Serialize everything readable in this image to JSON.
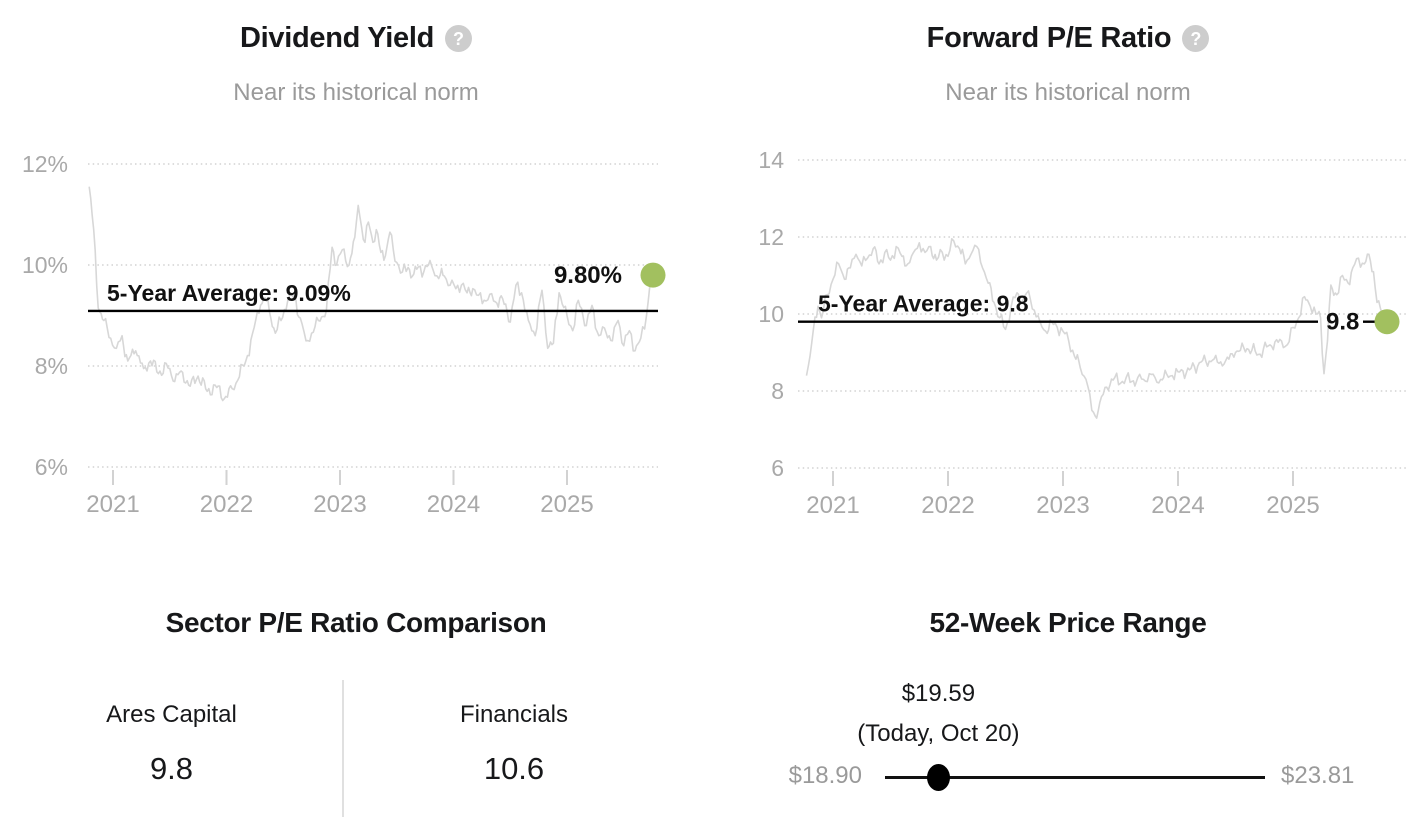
{
  "ui": {
    "help_glyph": "?"
  },
  "colors": {
    "accent_green": "#a2c05f",
    "series_gray": "#d7d7d7",
    "grid_gray": "#d2d2d2",
    "axis_text": "#a9a9a9",
    "average_line": "#000000"
  },
  "chart_data": [
    {
      "id": "dividend_yield",
      "type": "line",
      "title": "Dividend Yield",
      "subtitle": "Near its historical norm",
      "help_icon": "question-circle-icon",
      "yticks": [
        {
          "value": 12,
          "label": "12%"
        },
        {
          "value": 10,
          "label": "10%"
        },
        {
          "value": 8,
          "label": "8%"
        },
        {
          "value": 6,
          "label": "6%"
        }
      ],
      "xticks": [
        {
          "value": 2021,
          "label": "2021"
        },
        {
          "value": 2022,
          "label": "2022"
        },
        {
          "value": 2023,
          "label": "2023"
        },
        {
          "value": 2024,
          "label": "2024"
        },
        {
          "value": 2025,
          "label": "2025"
        }
      ],
      "xlim": [
        2020.75,
        2025.88
      ],
      "ylim": [
        6,
        12
      ],
      "grid": "dotted",
      "legend": "none",
      "average_line": {
        "label": "5-Year Average: 9.09%",
        "value": 9.09
      },
      "current_point": {
        "label": "9.80%",
        "value": 9.8,
        "x": 2025.75
      },
      "series": [
        {
          "name": "Dividend Yield (%)",
          "x": [
            2020.79,
            2020.83,
            2020.87,
            2020.92,
            2020.98,
            2021.03,
            2021.08,
            2021.13,
            2021.2,
            2021.27,
            2021.33,
            2021.4,
            2021.47,
            2021.53,
            2021.6,
            2021.68,
            2021.75,
            2021.83,
            2021.9,
            2021.98,
            2022.05,
            2022.1,
            2022.17,
            2022.23,
            2022.3,
            2022.34,
            2022.39,
            2022.43,
            2022.48,
            2022.54,
            2022.6,
            2022.65,
            2022.7,
            2022.75,
            2022.81,
            2022.88,
            2022.93,
            2022.97,
            2023.02,
            2023.08,
            2023.13,
            2023.16,
            2023.19,
            2023.22,
            2023.25,
            2023.29,
            2023.32,
            2023.36,
            2023.4,
            2023.44,
            2023.47,
            2023.5,
            2023.55,
            2023.6,
            2023.65,
            2023.69,
            2023.74,
            2023.78,
            2023.82,
            2023.87,
            2023.92,
            2023.97,
            2024.02,
            2024.07,
            2024.12,
            2024.17,
            2024.22,
            2024.27,
            2024.32,
            2024.37,
            2024.42,
            2024.5,
            2024.55,
            2024.6,
            2024.66,
            2024.72,
            2024.78,
            2024.83,
            2024.88,
            2024.93,
            2025.0,
            2025.05,
            2025.1,
            2025.17,
            2025.22,
            2025.28,
            2025.33,
            2025.4,
            2025.45,
            2025.5,
            2025.55,
            2025.6,
            2025.65,
            2025.7,
            2025.73,
            2025.75
          ],
          "values": [
            11.55,
            10.7,
            9.15,
            8.9,
            8.55,
            8.35,
            8.6,
            8.1,
            8.3,
            7.95,
            8.1,
            7.85,
            8.05,
            7.7,
            7.9,
            7.6,
            7.8,
            7.5,
            7.62,
            7.35,
            7.55,
            7.72,
            8.1,
            8.65,
            9.2,
            9.35,
            8.95,
            8.65,
            8.9,
            9.3,
            9.4,
            8.95,
            8.5,
            8.65,
            8.9,
            9.1,
            10.35,
            10.0,
            10.3,
            10.0,
            10.55,
            11.18,
            10.75,
            10.45,
            10.85,
            10.45,
            10.7,
            10.25,
            10.18,
            10.65,
            10.3,
            10.05,
            9.86,
            9.95,
            9.82,
            9.96,
            9.88,
            10.0,
            9.9,
            9.73,
            9.78,
            9.6,
            9.53,
            9.6,
            9.45,
            9.53,
            9.4,
            9.3,
            9.42,
            9.27,
            9.39,
            8.87,
            9.6,
            9.45,
            8.9,
            8.6,
            9.5,
            8.35,
            8.45,
            9.45,
            9.0,
            8.7,
            9.3,
            8.8,
            9.2,
            8.6,
            8.75,
            8.5,
            8.9,
            8.4,
            8.7,
            8.3,
            8.55,
            9.0,
            9.6,
            9.8
          ]
        }
      ]
    },
    {
      "id": "forward_pe",
      "type": "line",
      "title": "Forward P/E Ratio",
      "subtitle": "Near its historical norm",
      "help_icon": "question-circle-icon",
      "yticks": [
        {
          "value": 14,
          "label": "14"
        },
        {
          "value": 12,
          "label": "12"
        },
        {
          "value": 10,
          "label": "10"
        },
        {
          "value": 8,
          "label": "8"
        },
        {
          "value": 6,
          "label": "6"
        }
      ],
      "xticks": [
        {
          "value": 2021,
          "label": "2021"
        },
        {
          "value": 2022,
          "label": "2022"
        },
        {
          "value": 2023,
          "label": "2023"
        },
        {
          "value": 2024,
          "label": "2024"
        },
        {
          "value": 2025,
          "label": "2025"
        }
      ],
      "xlim": [
        2020.74,
        2025.9
      ],
      "ylim": [
        6,
        14
      ],
      "grid": "dotted",
      "legend": "none",
      "average_line": {
        "label": "5-Year Average: 9.8",
        "value": 9.8
      },
      "current_point": {
        "label": "9.8",
        "value": 9.8,
        "x": 2025.8
      },
      "series": [
        {
          "name": "Forward P/E Ratio",
          "x": [
            2020.77,
            2020.8,
            2020.83,
            2020.87,
            2020.9,
            2020.95,
            2021.0,
            2021.05,
            2021.1,
            2021.15,
            2021.2,
            2021.25,
            2021.3,
            2021.35,
            2021.4,
            2021.45,
            2021.5,
            2021.55,
            2021.6,
            2021.65,
            2021.7,
            2021.75,
            2021.8,
            2021.85,
            2021.9,
            2021.95,
            2022.0,
            2022.05,
            2022.1,
            2022.15,
            2022.2,
            2022.25,
            2022.3,
            2022.35,
            2022.4,
            2022.45,
            2022.5,
            2022.55,
            2022.6,
            2022.65,
            2022.7,
            2022.75,
            2022.8,
            2022.85,
            2022.9,
            2022.95,
            2023.0,
            2023.05,
            2023.1,
            2023.15,
            2023.2,
            2023.25,
            2023.28,
            2023.32,
            2023.38,
            2023.45,
            2023.5,
            2023.55,
            2023.6,
            2023.65,
            2023.7,
            2023.75,
            2023.8,
            2023.85,
            2023.9,
            2023.95,
            2024.0,
            2024.1,
            2024.2,
            2024.3,
            2024.4,
            2024.5,
            2024.6,
            2024.7,
            2024.8,
            2024.9,
            2024.95,
            2025.0,
            2025.05,
            2025.1,
            2025.15,
            2025.2,
            2025.24,
            2025.27,
            2025.3,
            2025.33,
            2025.38,
            2025.43,
            2025.48,
            2025.52,
            2025.57,
            2025.62,
            2025.66,
            2025.7,
            2025.73,
            2025.76,
            2025.8
          ],
          "values": [
            8.4,
            8.9,
            9.6,
            10.2,
            9.9,
            10.5,
            10.9,
            11.3,
            10.9,
            11.2,
            11.55,
            11.25,
            11.45,
            11.7,
            11.3,
            11.6,
            11.4,
            11.75,
            11.5,
            11.3,
            11.6,
            11.85,
            11.6,
            11.75,
            11.4,
            11.6,
            11.5,
            11.9,
            11.7,
            11.3,
            11.55,
            11.75,
            11.2,
            10.8,
            10.3,
            9.9,
            9.6,
            10.2,
            10.55,
            10.35,
            10.6,
            10.1,
            9.8,
            9.55,
            9.8,
            9.65,
            9.55,
            9.3,
            8.9,
            8.6,
            8.3,
            7.5,
            7.35,
            7.7,
            8.1,
            8.35,
            8.2,
            8.35,
            8.25,
            8.35,
            8.3,
            8.45,
            8.35,
            8.3,
            8.45,
            8.4,
            8.5,
            8.55,
            8.75,
            8.8,
            8.7,
            9.0,
            9.1,
            8.95,
            9.2,
            9.3,
            9.2,
            9.65,
            9.9,
            10.45,
            10.2,
            10.0,
            9.9,
            8.45,
            9.3,
            10.75,
            10.5,
            11.0,
            10.8,
            11.2,
            11.45,
            11.3,
            11.55,
            11.1,
            10.3,
            10.15,
            9.8
          ]
        }
      ]
    },
    {
      "id": "sector_pe_comparison",
      "type": "table",
      "title": "Sector P/E Ratio Comparison",
      "columns": [
        {
          "label": "Ares Capital",
          "value": "9.8"
        },
        {
          "label": "Financials",
          "value": "10.6"
        }
      ]
    },
    {
      "id": "price_range_52w",
      "type": "range",
      "title": "52-Week Price Range",
      "current": {
        "price": "$19.59",
        "price_value": 19.59,
        "note": "(Today, Oct 20)"
      },
      "low": {
        "label": "$18.90",
        "value": 18.9
      },
      "high": {
        "label": "$23.81",
        "value": 23.81
      }
    }
  ]
}
